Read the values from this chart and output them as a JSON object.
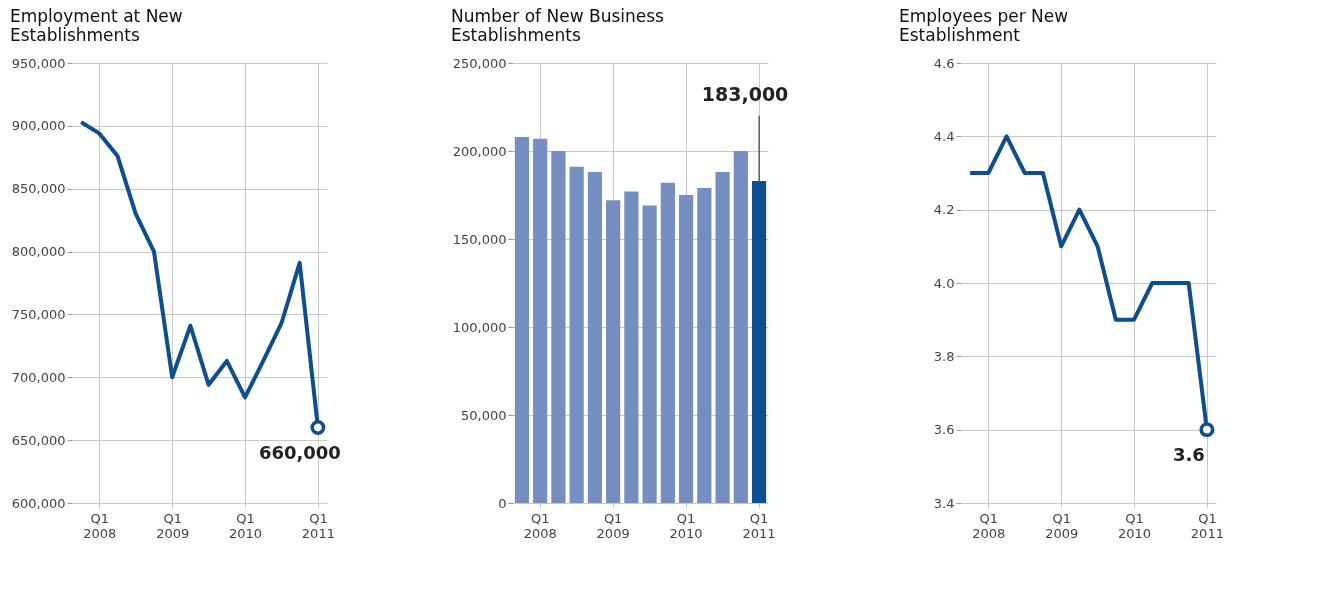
{
  "chart_data": [
    {
      "type": "line",
      "title": "Employment at New Establishments",
      "categories": [
        null,
        "Q1 2008",
        null,
        null,
        null,
        "Q1 2009",
        null,
        null,
        null,
        "Q1 2010",
        null,
        null,
        null,
        "Q1 2011"
      ],
      "series": [
        {
          "color": "#0e4d8e",
          "values": [
            903000,
            894000,
            876000,
            830000,
            800000,
            700000,
            741000,
            694000,
            713000,
            684000,
            713000,
            743000,
            791000,
            660000
          ],
          "value_labels": [
            null,
            null,
            null,
            null,
            null,
            null,
            null,
            null,
            null,
            null,
            null,
            null,
            null,
            "660,000"
          ]
        }
      ],
      "ylim": [
        600000,
        950000
      ],
      "yticks": [
        {
          "value": 600000,
          "label": "600,000"
        },
        {
          "value": 650000,
          "label": "650,000"
        },
        {
          "value": 700000,
          "label": "700,000"
        },
        {
          "value": 750000,
          "label": "750,000"
        },
        {
          "value": 800000,
          "label": "800,000"
        },
        {
          "value": 850000,
          "label": "850,000"
        },
        {
          "value": 900000,
          "label": "900,000"
        },
        {
          "value": 950000,
          "label": "950,000"
        }
      ],
      "grid": true,
      "marker": "none"
    },
    {
      "type": "bar",
      "title": "Number of New Business Establishments",
      "categories": [
        null,
        "Q1 2008",
        null,
        null,
        null,
        "Q1 2009",
        null,
        null,
        null,
        "Q1 2010",
        null,
        null,
        null,
        "Q1 2011"
      ],
      "values": [
        208000,
        207000,
        200000,
        191000,
        188000,
        172000,
        177000,
        169000,
        182000,
        175000,
        179000,
        188000,
        200000,
        183000
      ],
      "colors": [
        "#778fc0",
        "#778fc0",
        "#778fc0",
        "#778fc0",
        "#778fc0",
        "#778fc0",
        "#778fc0",
        "#778fc0",
        "#778fc0",
        "#778fc0",
        "#778fc0",
        "#778fc0",
        "#778fc0",
        "#0e4d8e"
      ],
      "value_labels": [
        null,
        null,
        null,
        null,
        null,
        null,
        null,
        null,
        null,
        null,
        null,
        null,
        null,
        "183,000"
      ],
      "ylim": [
        0,
        250000
      ],
      "yticks": [
        0,
        {
          "value": 50000,
          "label": "50,000"
        },
        {
          "value": 100000,
          "label": "100,000"
        },
        {
          "value": 150000,
          "label": "150,000"
        },
        {
          "value": 200000,
          "label": "200,000"
        },
        {
          "value": 250000,
          "label": "250,000"
        }
      ],
      "grid": true
    },
    {
      "type": "line",
      "title": "Employees per New Establishment",
      "categories": [
        null,
        "Q1 2008",
        null,
        null,
        null,
        "Q1 2009",
        null,
        null,
        null,
        "Q1 2010",
        null,
        null,
        null,
        "Q1 2011"
      ],
      "series": [
        {
          "color": "#0e4d8e",
          "values": [
            4.3,
            4.3,
            4.4,
            4.3,
            4.3,
            4.1,
            4.2,
            4.1,
            3.9,
            3.9,
            4.0,
            4.0,
            4.0,
            3.6
          ],
          "value_labels": [
            null,
            null,
            null,
            null,
            null,
            null,
            null,
            null,
            null,
            null,
            null,
            null,
            null,
            "3.6"
          ]
        }
      ],
      "ylim": [
        3.4,
        4.6
      ],
      "yticks": [
        3.4,
        3.6,
        3.8,
        {
          "value": 4,
          "label": "4.0"
        },
        4.2,
        4.4,
        4.6
      ],
      "grid": true,
      "marker": "none"
    }
  ]
}
